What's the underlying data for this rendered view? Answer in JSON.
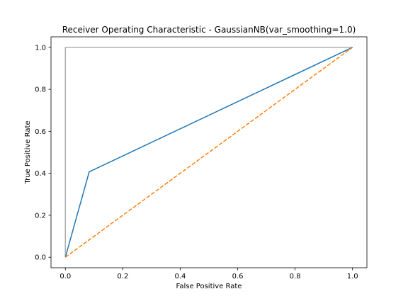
{
  "chart_data": {
    "type": "line",
    "title": "Receiver Operating Characteristic - GaussianNB(var_smoothing=1.0)",
    "xlabel": "False Positive Rate",
    "ylabel": "True Positive Rate",
    "xlim": [
      -0.05,
      1.05
    ],
    "ylim": [
      -0.05,
      1.05
    ],
    "xticks": [
      0.0,
      0.2,
      0.4,
      0.6,
      0.8,
      1.0
    ],
    "yticks": [
      0.0,
      0.2,
      0.4,
      0.6,
      0.8,
      1.0
    ],
    "xtick_labels": [
      "0.0",
      "0.2",
      "0.4",
      "0.6",
      "0.8",
      "1.0"
    ],
    "ytick_labels": [
      "0.0",
      "0.2",
      "0.4",
      "0.6",
      "0.8",
      "1.0"
    ],
    "grid": false,
    "legend": false,
    "series": [
      {
        "key": "roc",
        "x": [
          0.0,
          0.083,
          1.0
        ],
        "y": [
          0.0,
          0.407,
          1.0
        ],
        "color": "#1f77b4",
        "style": "solid"
      },
      {
        "key": "chance",
        "x": [
          0.0,
          1.0
        ],
        "y": [
          0.0,
          1.0
        ],
        "color": "#ff7f0e",
        "style": "dashed"
      },
      {
        "key": "perfect",
        "x": [
          0.0,
          0.0,
          1.0
        ],
        "y": [
          0.0,
          1.0,
          1.0
        ],
        "color": "#b0b0b0",
        "style": "solid"
      }
    ]
  }
}
